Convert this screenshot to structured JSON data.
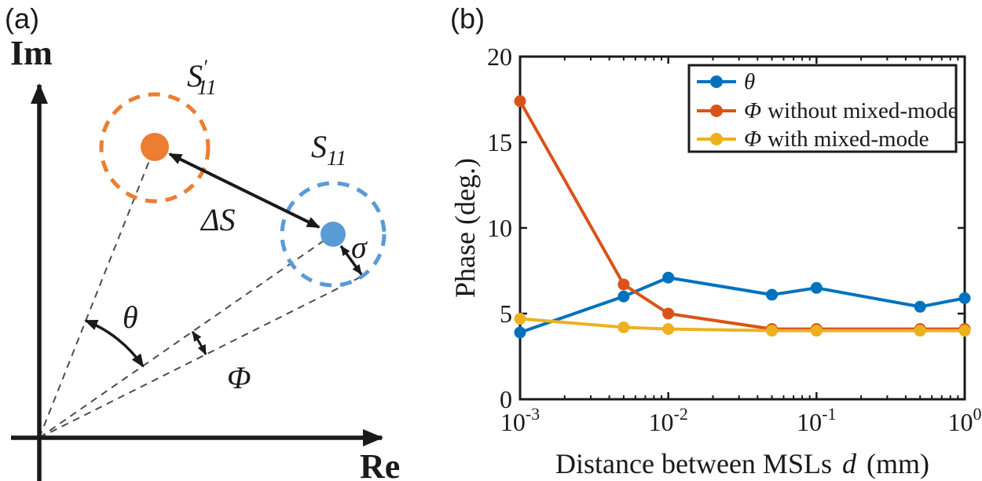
{
  "panels": {
    "a_label": "(a)",
    "b_label": "(b)"
  },
  "panel_a": {
    "axis_labels": {
      "imaginary": "Im",
      "real": "Re"
    },
    "markers": {
      "shifted": {
        "base": "S",
        "prime": "′",
        "subscript": "11",
        "color": "#ED7D31"
      },
      "original": {
        "base": "S",
        "subscript": "11",
        "color": "#5B9BD5"
      }
    },
    "annotations": {
      "delta_s": "ΔS",
      "sigma": "σ",
      "theta": "θ",
      "phi": "Φ"
    },
    "line_color": "#1a1a1a",
    "dashed_line_color": "#4d4d4d"
  },
  "chart_data": {
    "type": "line",
    "title": "",
    "xlabel": "Distance between MSLs d (mm)",
    "xlabel_parts": {
      "prefix": "Distance between MSLs",
      "variable": "d",
      "unit": "(mm)"
    },
    "ylabel": "Phase (deg.)",
    "x_scale": "log",
    "xlim": [
      0.001,
      1
    ],
    "ylim": [
      0,
      20
    ],
    "yticks": [
      0,
      5,
      10,
      15,
      20
    ],
    "xtick_exponents": [
      -3,
      -2,
      -1,
      0
    ],
    "xticklabels": [
      "10⁻³",
      "10⁻²",
      "10⁻¹",
      "10⁰"
    ],
    "grid": false,
    "legend_position": "top-right-inside",
    "frame_color": "#1a1a1a",
    "x": [
      0.001,
      0.005,
      0.01,
      0.05,
      0.1,
      0.5,
      1
    ],
    "series": [
      {
        "name": "θ",
        "symbol": "θ",
        "rest": "",
        "color": "#0072BD",
        "values": [
          3.9,
          6.0,
          7.1,
          6.1,
          6.5,
          5.4,
          5.9
        ]
      },
      {
        "name": "Φ without mixed-mode",
        "symbol": "Φ",
        "rest": "without mixed-mode",
        "color": "#D95319",
        "values": [
          17.4,
          6.7,
          5.0,
          4.1,
          4.1,
          4.1,
          4.1
        ]
      },
      {
        "name": "Φ with mixed-mode",
        "symbol": "Φ",
        "rest": "with mixed-mode",
        "color": "#EDB120",
        "values": [
          4.7,
          4.2,
          4.1,
          4.0,
          4.0,
          4.0,
          4.0
        ]
      }
    ]
  }
}
